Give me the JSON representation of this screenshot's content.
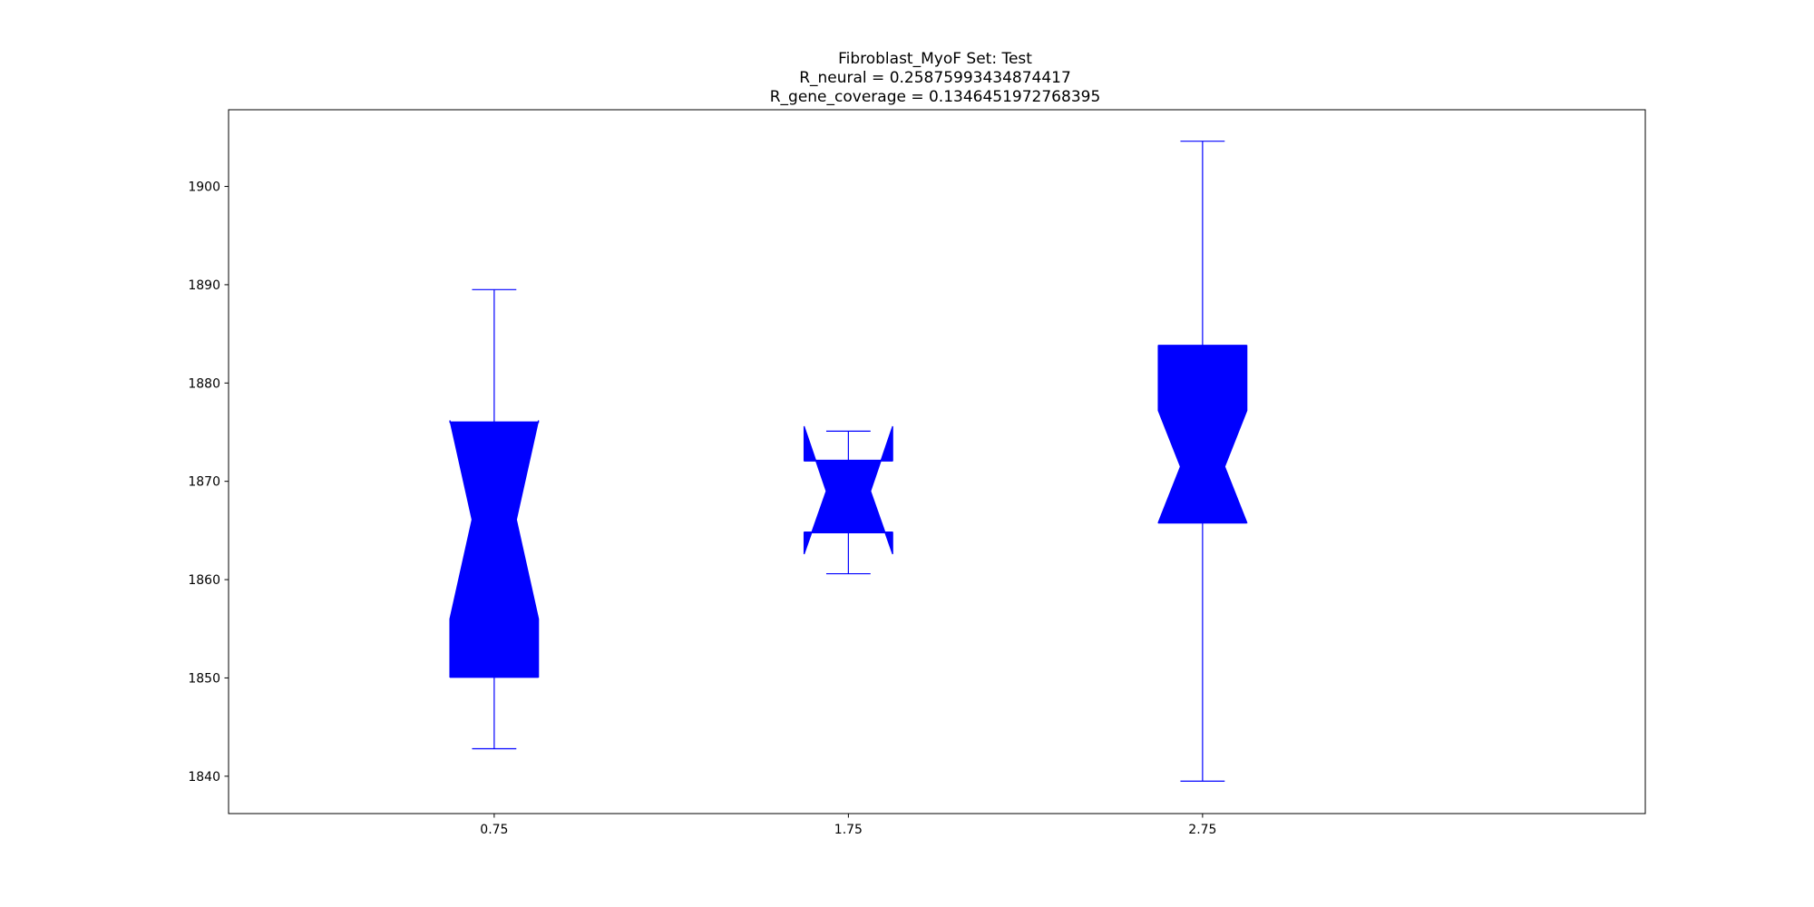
{
  "chart_data": {
    "type": "boxplot",
    "notched": true,
    "title_lines": [
      "Fibroblast_MyoF Set: Test",
      "R_neural = 0.25875993434874417",
      "R_gene_coverage = 0.1346451972768395"
    ],
    "xlabel": "",
    "ylabel": "",
    "xlim": [
      0,
      4
    ],
    "ylim": [
      1836.2,
      1907.8
    ],
    "x_ticks": [
      0.75,
      1.75,
      2.75
    ],
    "x_tick_labels": [
      "0.75",
      "1.75",
      "2.75"
    ],
    "y_ticks": [
      1840,
      1850,
      1860,
      1870,
      1880,
      1890,
      1900
    ],
    "y_tick_labels": [
      "1840",
      "1850",
      "1860",
      "1870",
      "1880",
      "1890",
      "1900"
    ],
    "grid": false,
    "box_width": 0.25,
    "box_color": "#0000ff",
    "boxes": [
      {
        "position": 0.75,
        "whisker_low": 1842.8,
        "q1": 1850.1,
        "median": 1866.1,
        "q3": 1876.0,
        "whisker_high": 1889.5,
        "notch_low": 1856.0,
        "notch_high": 1876.2
      },
      {
        "position": 1.75,
        "whisker_low": 1860.6,
        "q1": 1864.8,
        "median": 1869.0,
        "q3": 1872.1,
        "whisker_high": 1875.1,
        "notch_low": 1862.6,
        "notch_high": 1875.6
      },
      {
        "position": 2.75,
        "whisker_low": 1839.5,
        "q1": 1865.8,
        "median": 1871.5,
        "q3": 1883.8,
        "whisker_high": 1904.6,
        "notch_low": 1865.8,
        "notch_high": 1877.2
      }
    ]
  }
}
